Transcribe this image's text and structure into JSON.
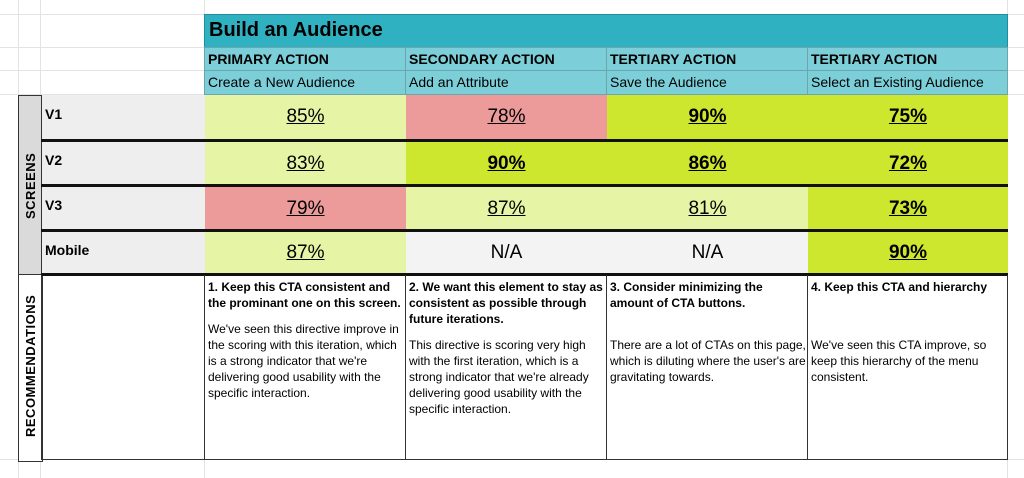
{
  "title": "Build an Audience",
  "actions": [
    {
      "level": "PRIMARY ACTION",
      "name": "Create a New Audience"
    },
    {
      "level": "SECONDARY ACTION",
      "name": "Add an Attribute"
    },
    {
      "level": "TERTIARY ACTION",
      "name": "Save the Audience"
    },
    {
      "level": "TERTIARY ACTION",
      "name": "Select an Existing Audience"
    }
  ],
  "side_labels": {
    "screens": "SCREENS",
    "recommendations": "RECOMMENDATIONS"
  },
  "rows": [
    {
      "label": "V1",
      "values": [
        "85%",
        "78%",
        "90%",
        "75%"
      ]
    },
    {
      "label": "V2",
      "values": [
        "83%",
        "90%",
        "86%",
        "72%"
      ]
    },
    {
      "label": "V3",
      "values": [
        "79%",
        "87%",
        "81%",
        "73%"
      ]
    },
    {
      "label": "Mobile",
      "values": [
        "87%",
        "N/A",
        "N/A",
        "90%"
      ]
    }
  ],
  "cell_colors": {
    "light": "#e6f4a6",
    "bright": "#cde72f",
    "red": "#ec9a9a",
    "grey": "#f3f3f3",
    "header": "#7ccfd8",
    "title": "#2fb1c2"
  },
  "recommendations": [
    {
      "title": "1. Keep this CTA consistent and the prominant one on this screen.",
      "body": "We've seen this directive improve in the scoring with this iteration, which is a strong indicator that we're delivering good usability with the specific interaction."
    },
    {
      "title": "2. We want this element to stay as consistent as possible through future iterations.",
      "body": "This directive is scoring very high with the first iteration, which is a strong indicator that we're already delivering good usability with the specific interaction."
    },
    {
      "title": "3. Consider minimizing the amount of CTA buttons.",
      "body": "There are a lot of CTAs on this page, which is diluting where the user's are gravitating towards."
    },
    {
      "title": "4. Keep this CTA and hierarchy",
      "body": "We've seen this CTA improve, so keep this hierarchy of the menu consistent."
    }
  ]
}
